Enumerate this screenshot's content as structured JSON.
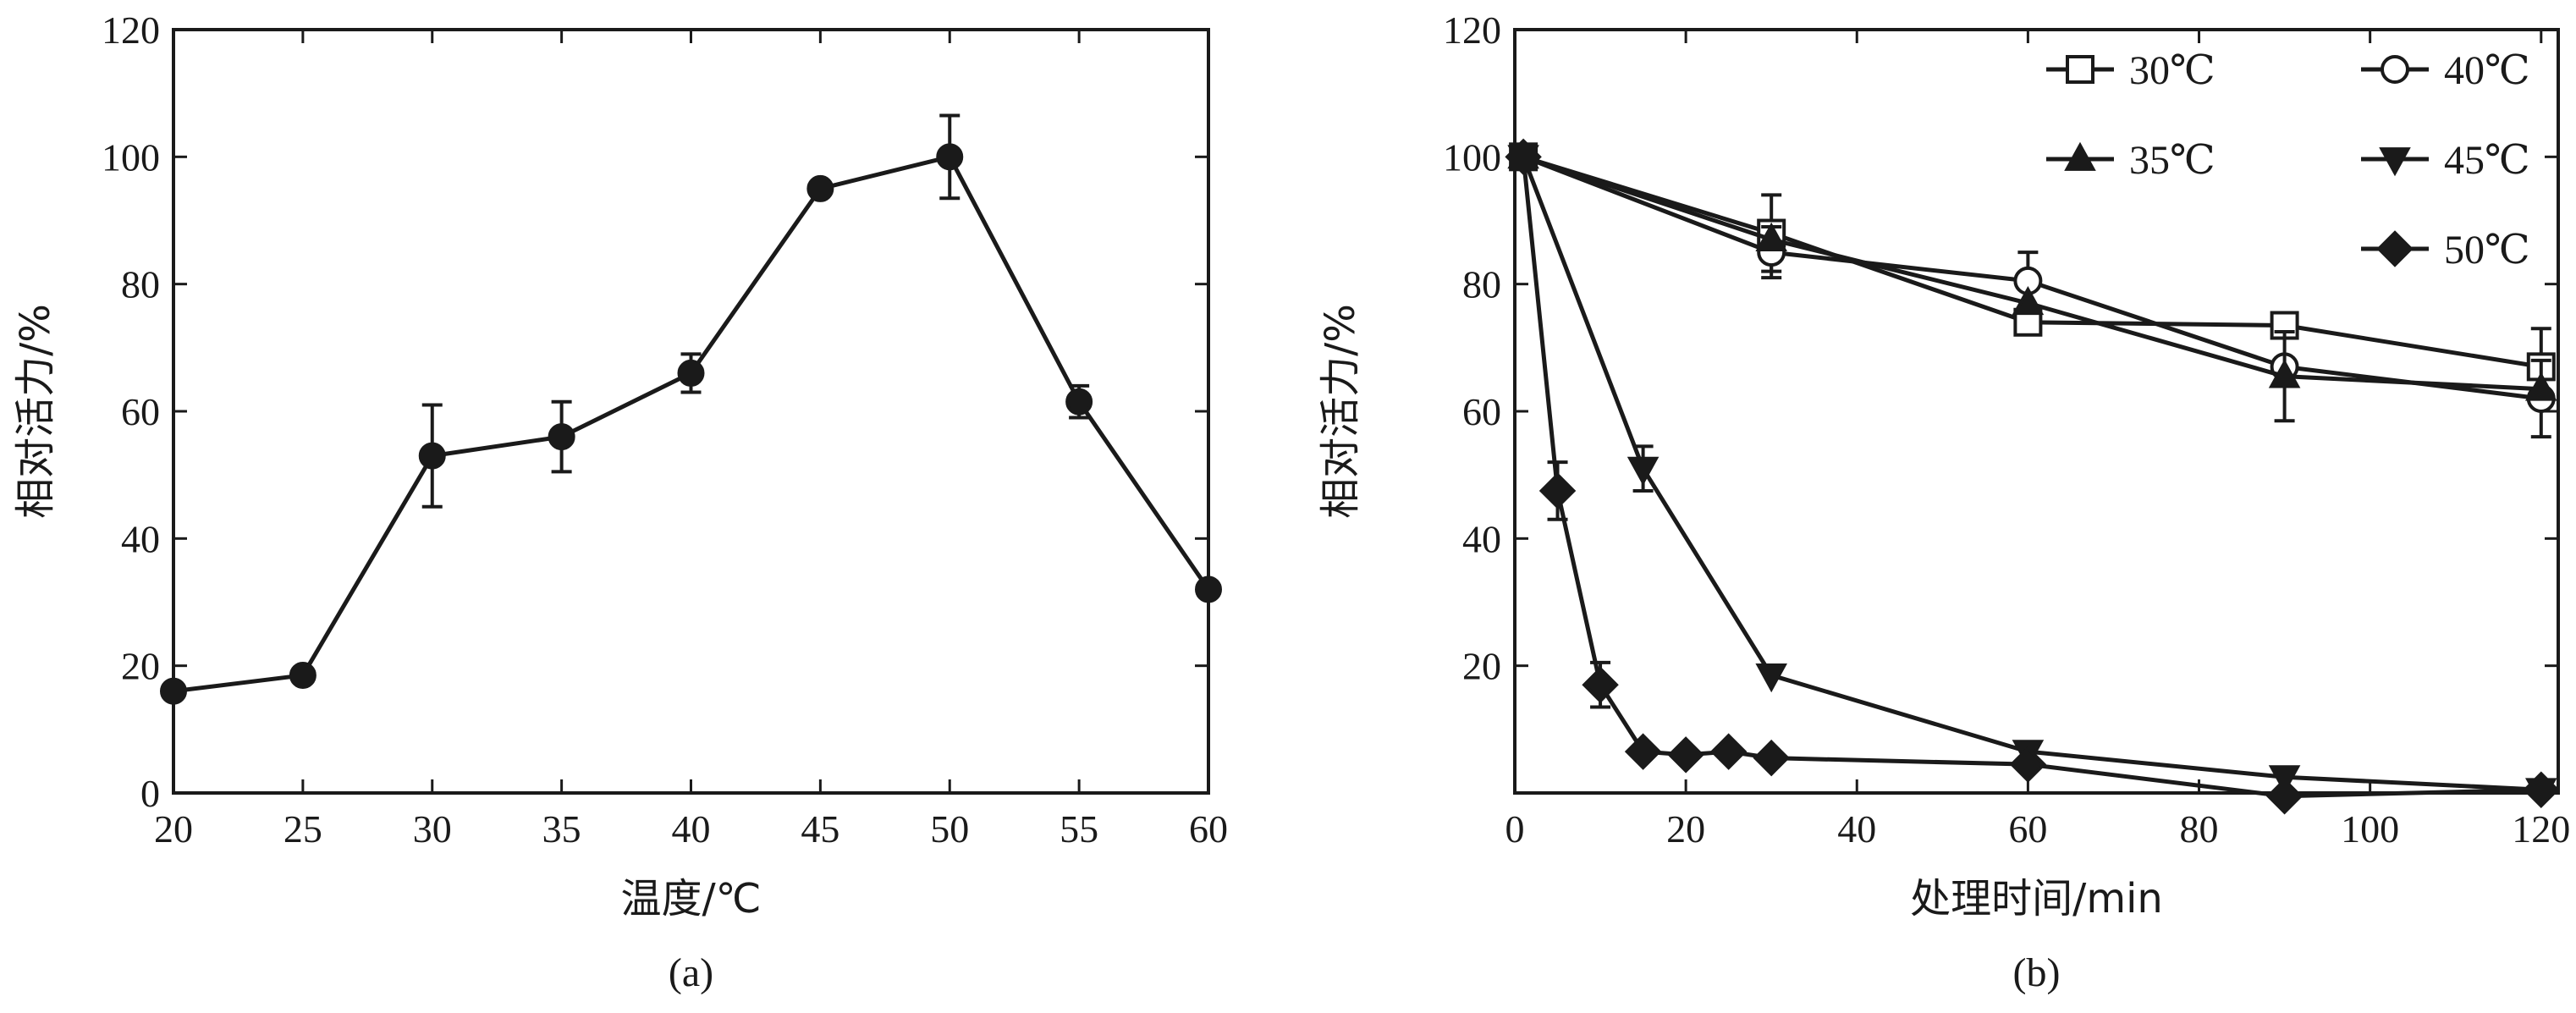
{
  "chart_data": [
    {
      "type": "line",
      "caption": "(a)",
      "xlabel": "温度/℃",
      "ylabel": "相对活力/%",
      "xlim": [
        20,
        60
      ],
      "ylim": [
        0,
        120
      ],
      "xticks": [
        20,
        25,
        30,
        35,
        40,
        45,
        50,
        55,
        60
      ],
      "yticks": [
        0,
        20,
        40,
        60,
        80,
        100,
        120
      ],
      "grid": false,
      "series": [
        {
          "marker": "circle-filled",
          "x": [
            20,
            25,
            30,
            35,
            40,
            45,
            50,
            55,
            60
          ],
          "y": [
            16,
            18.5,
            53,
            56,
            66,
            95,
            100,
            61.5,
            32
          ],
          "yerr": [
            0,
            0,
            8,
            5.5,
            3,
            0,
            6.5,
            2.5,
            0
          ]
        }
      ]
    },
    {
      "type": "line",
      "caption": "(b)",
      "xlabel": "处理时间/min",
      "ylabel": "相对活力/%",
      "xlim": [
        0,
        122
      ],
      "ylim": [
        0,
        120
      ],
      "xticks": [
        0,
        20,
        40,
        60,
        80,
        100,
        120
      ],
      "yticks": [
        20,
        40,
        60,
        80,
        100,
        120
      ],
      "grid": false,
      "legend_position": "top-right",
      "series": [
        {
          "name": "30℃",
          "marker": "square-open",
          "x": [
            1,
            30,
            60,
            90,
            120
          ],
          "y": [
            100,
            88,
            74,
            73.5,
            67
          ],
          "yerr": [
            0,
            6,
            0,
            0,
            6
          ]
        },
        {
          "name": "40℃",
          "marker": "circle-open",
          "x": [
            1,
            30,
            60,
            90,
            120
          ],
          "y": [
            100,
            85,
            80.5,
            67,
            62
          ],
          "yerr": [
            0,
            4,
            4.5,
            0,
            6
          ]
        },
        {
          "name": "35℃",
          "marker": "triangle-up-filled",
          "x": [
            1,
            30,
            60,
            90,
            120
          ],
          "y": [
            100,
            87,
            77,
            65.5,
            63.5
          ],
          "yerr": [
            0,
            0,
            0,
            7,
            0
          ]
        },
        {
          "name": "45℃",
          "marker": "triangle-down-filled",
          "x": [
            1,
            15,
            30,
            60,
            90,
            120
          ],
          "y": [
            100,
            51,
            18.5,
            6.5,
            2.5,
            0.5
          ],
          "yerr": [
            0,
            3.5,
            0,
            0,
            0,
            0
          ]
        },
        {
          "name": "50℃",
          "marker": "diamond-filled",
          "x": [
            1,
            5,
            10,
            15,
            20,
            25,
            30,
            60,
            90,
            120
          ],
          "y": [
            100,
            47.5,
            17,
            6.5,
            6,
            6.5,
            5.5,
            4.5,
            -0.5,
            0.5
          ],
          "yerr": [
            0,
            4.5,
            3.5,
            0,
            0,
            0,
            0,
            0,
            0,
            0
          ]
        }
      ]
    }
  ]
}
